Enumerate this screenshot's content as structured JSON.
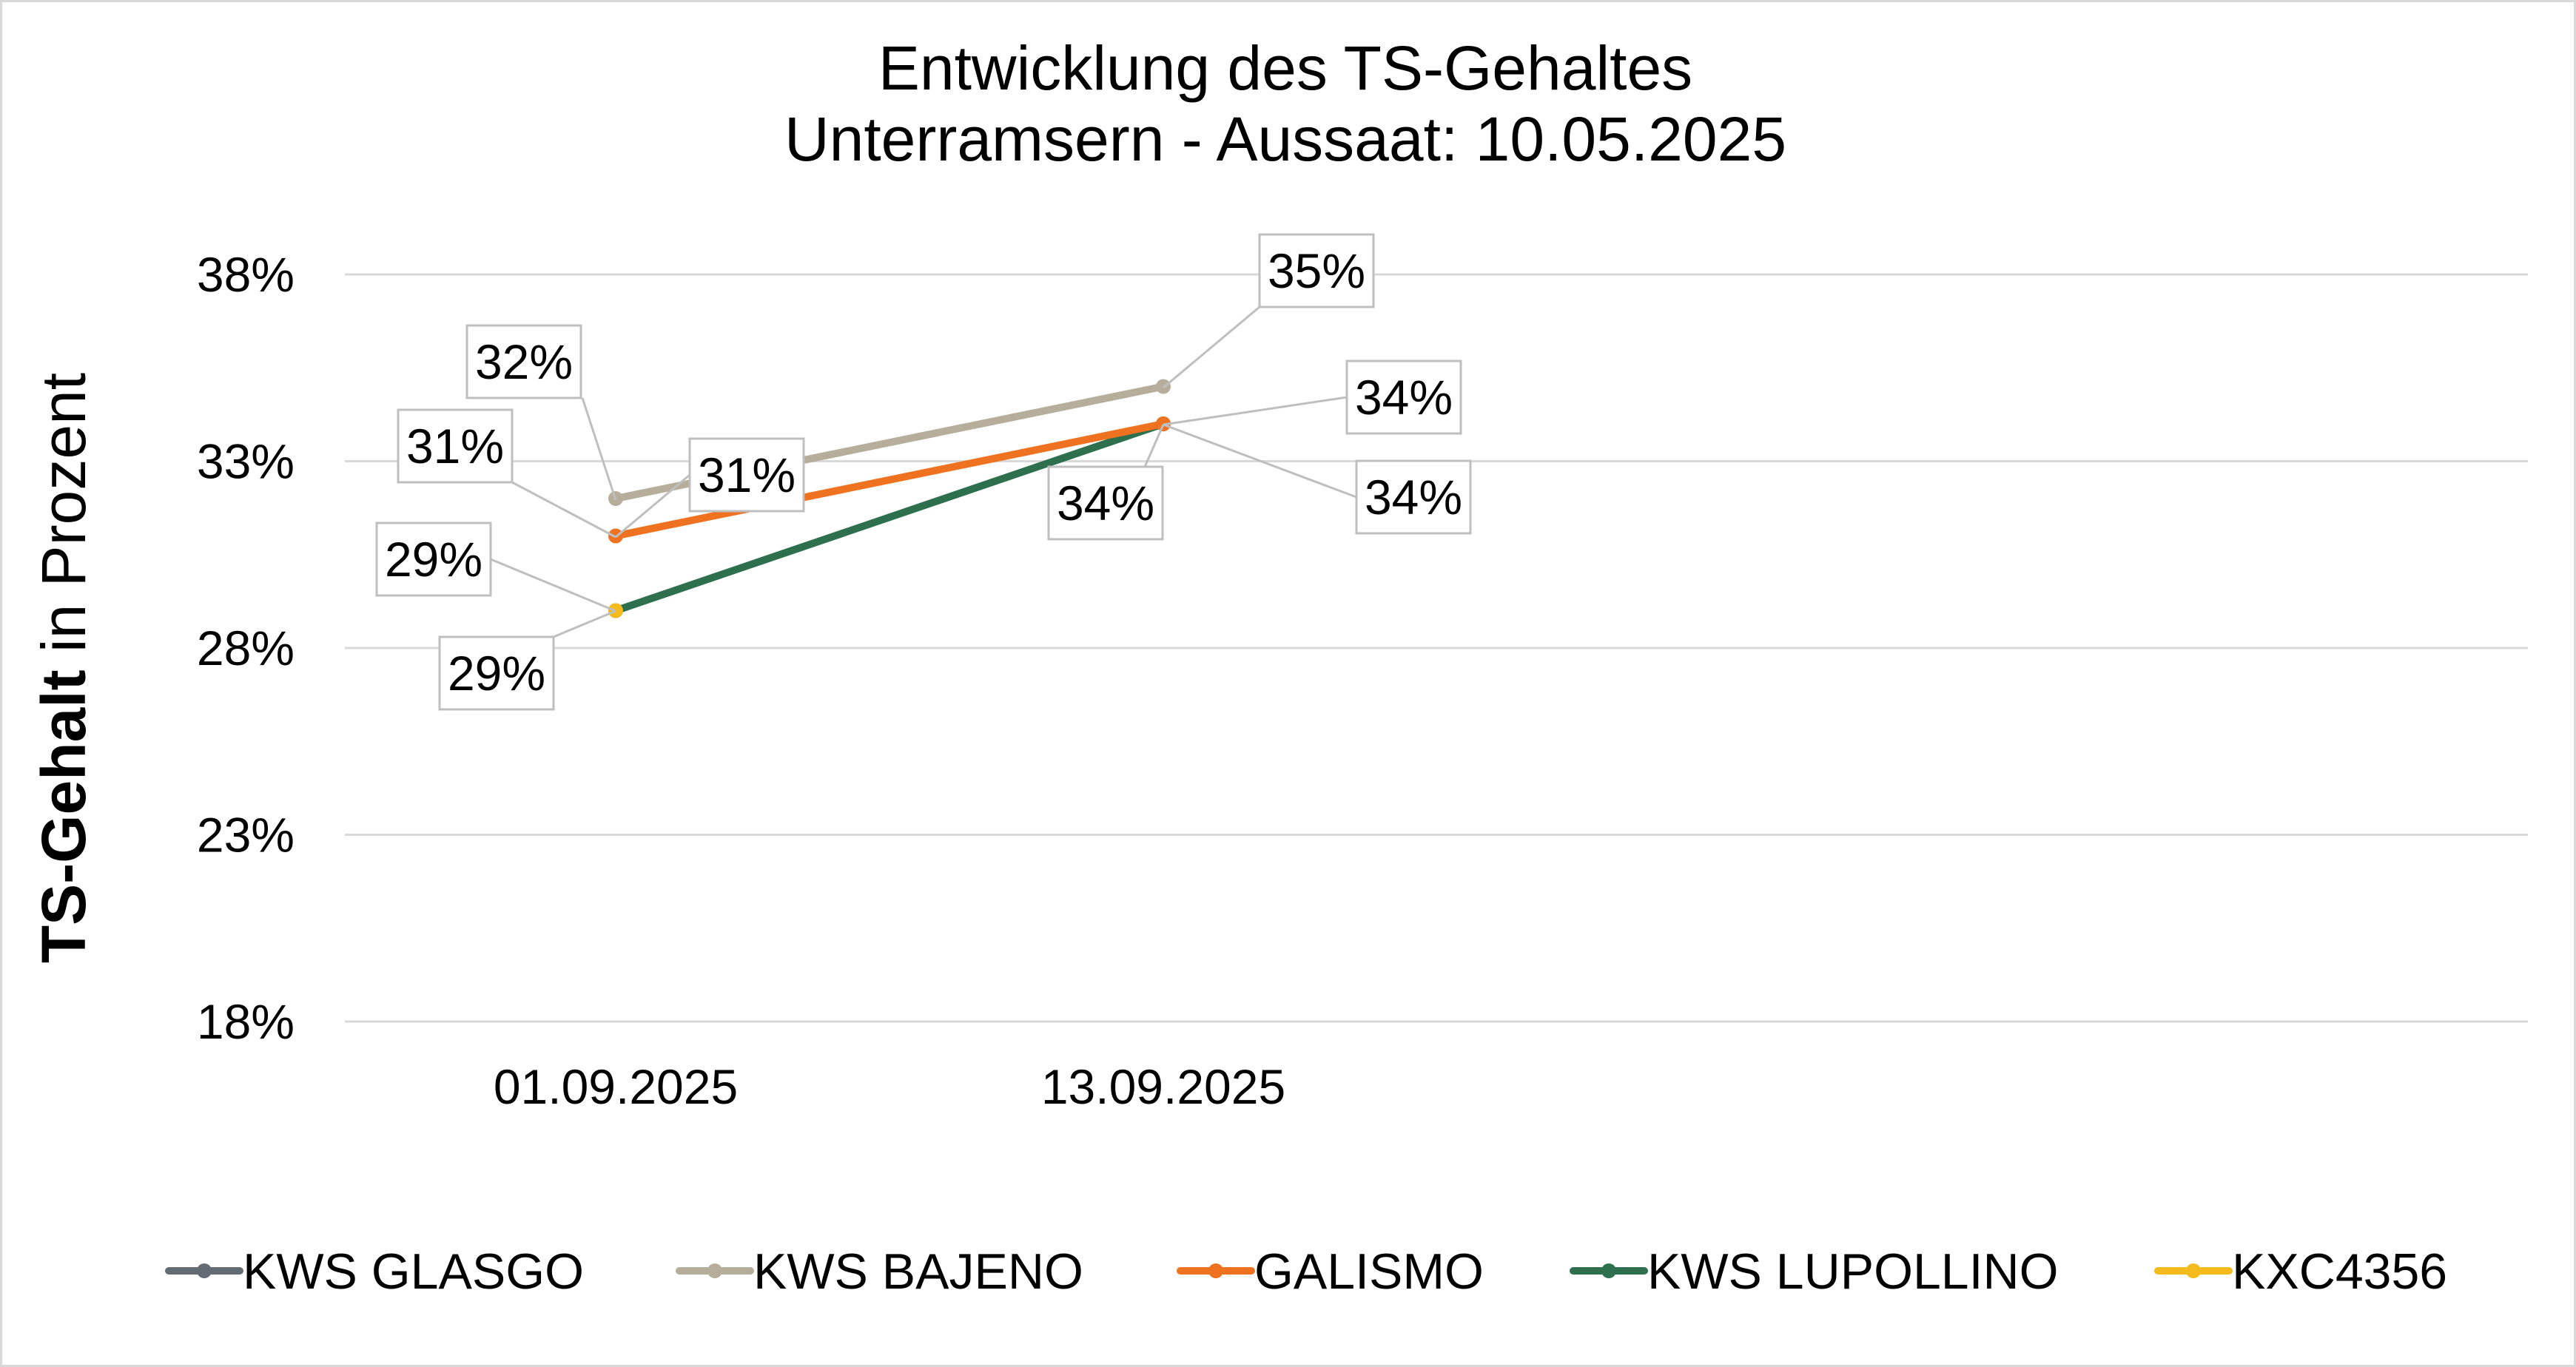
{
  "chart_data": {
    "type": "line",
    "title": [
      "Entwicklung des TS-Gehaltes",
      "Unterramsern - Aussaat: 10.05.2025"
    ],
    "ylabel_bold": "TS-Gehalt",
    "ylabel_rest": " in Prozent",
    "categories": [
      "01.09.2025",
      "13.09.2025"
    ],
    "y_ticks": [
      "18%",
      "23%",
      "28%",
      "33%",
      "38%"
    ],
    "ylim": [
      18,
      38
    ],
    "grid": true,
    "legend_position": "bottom",
    "series": [
      {
        "name": "KWS GLASGO",
        "color": "#636b74",
        "values": [
          null,
          null
        ],
        "labels": [
          null,
          null
        ]
      },
      {
        "name": "KWS BAJENO",
        "color": "#b6ae9b",
        "values": [
          32,
          35
        ],
        "labels": [
          "32%",
          "35%"
        ]
      },
      {
        "name": "GALISMO",
        "color": "#ee7220",
        "values": [
          31,
          34
        ],
        "labels": [
          "31%",
          "34%"
        ]
      },
      {
        "name": "KWS LUPOLLINO",
        "color": "#2e6f4e",
        "values": [
          29,
          34
        ],
        "labels": [
          "29%",
          "34%"
        ]
      },
      {
        "name": "KXC4356",
        "color": "#f5bb1d",
        "values": [
          29,
          34
        ],
        "labels": [
          "29%",
          "34%"
        ]
      }
    ],
    "extra_labels": [
      "31%",
      "29%",
      "34%"
    ]
  }
}
